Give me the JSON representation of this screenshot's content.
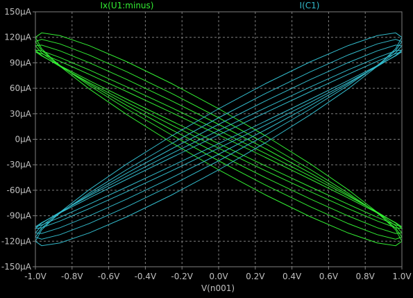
{
  "chart_data": {
    "type": "line",
    "background": "#000000",
    "frame_color": "#808080",
    "grid": true,
    "grid_color": "#808080",
    "text_color": "#c0c0c0",
    "xlabel": "V(n001)",
    "xlim": [
      -1.0,
      1.0
    ],
    "ylim": [
      -150,
      150
    ],
    "x_ticks": [
      -1.0,
      -0.8,
      -0.6,
      -0.4,
      -0.2,
      0.0,
      0.2,
      0.4,
      0.6,
      0.8,
      1.0
    ],
    "x_tick_labels": [
      "-1.0V",
      "-0.8V",
      "-0.6V",
      "-0.4V",
      "-0.2V",
      "0.0V",
      "0.2V",
      "0.4V",
      "0.6V",
      "0.8V",
      "1.0V"
    ],
    "y_ticks": [
      150,
      120,
      90,
      60,
      30,
      0,
      -30,
      -60,
      -90,
      -120,
      -150
    ],
    "y_tick_labels": [
      "150µA",
      "120µA",
      "90µA",
      "60µA",
      "30µA",
      "0µA",
      "-30µA",
      "-60µA",
      "-90µA",
      "-120µA",
      "-150µA"
    ],
    "series": [
      {
        "name": "Ix(U1:minus)",
        "color": "#33ee33",
        "loops": [
          {
            "amplitude": 120,
            "width": 0.3
          },
          {
            "amplitude": 115,
            "width": 0.22
          },
          {
            "amplitude": 110,
            "width": 0.16
          },
          {
            "amplitude": 105,
            "width": 0.1
          },
          {
            "amplitude": 103,
            "width": 0.05
          }
        ]
      },
      {
        "name": "I(C1)",
        "color": "#33bbcc",
        "loops": [
          {
            "amplitude": 120,
            "width": 0.3
          },
          {
            "amplitude": 115,
            "width": 0.22
          },
          {
            "amplitude": 110,
            "width": 0.16
          },
          {
            "amplitude": 105,
            "width": 0.1
          },
          {
            "amplitude": 103,
            "width": 0.05
          }
        ]
      }
    ]
  }
}
